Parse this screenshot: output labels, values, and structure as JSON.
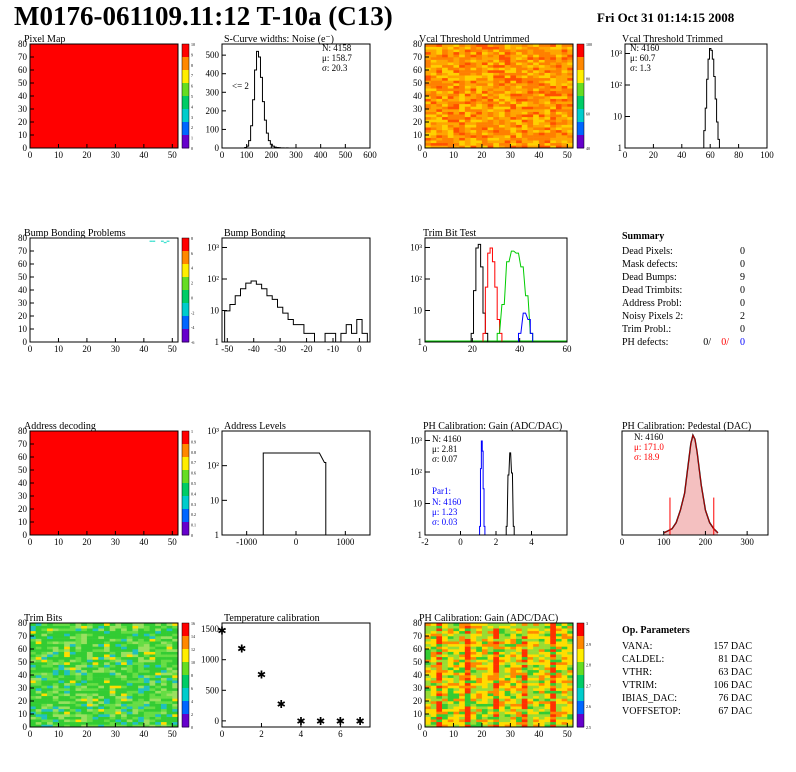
{
  "header": {
    "title": "M0176-061109.11:12 T-10a (C13)",
    "date": "Fri Oct 31 01:14:15 2008"
  },
  "colors": {
    "red": "#ff0000",
    "blue": "#0000ff",
    "green": "#00cc00",
    "black": "#000000"
  },
  "chart_data": [
    {
      "id": "pixel-map",
      "type": "heatmap",
      "title": "Pixel Map",
      "xlim": [
        0,
        52
      ],
      "ylim": [
        0,
        80
      ],
      "xticks": [
        "0",
        "10",
        "20",
        "30",
        "40",
        "50"
      ],
      "yticks": [
        "0",
        "10",
        "20",
        "30",
        "40",
        "50",
        "60",
        "70",
        "80"
      ],
      "fill": "uniform red (all pixels at maximum)",
      "palette_labels": [
        "0",
        "1",
        "2",
        "3",
        "4",
        "5",
        "6",
        "7",
        "8",
        "9",
        "10"
      ]
    },
    {
      "id": "scurve-widths",
      "type": "bar",
      "title": "S-Curve widths: Noise (e⁻)",
      "xlim": [
        0,
        600
      ],
      "ylim": [
        0,
        560
      ],
      "xticks": [
        "0",
        "100",
        "200",
        "300",
        "400",
        "500",
        "600"
      ],
      "yticks": [
        "0",
        "100",
        "200",
        "300",
        "400",
        "500"
      ],
      "annotation": "<= 2",
      "stats": {
        "N": "N: 4158",
        "mean": "μ: 158.7",
        "sigma": "σ: 20.3"
      },
      "x": [
        96,
        104,
        112,
        120,
        128,
        136,
        144,
        152,
        160,
        168,
        176,
        184,
        192,
        200,
        208,
        216,
        224,
        232,
        240,
        248,
        256,
        264,
        272
      ],
      "values": [
        3,
        10,
        40,
        120,
        260,
        420,
        520,
        490,
        380,
        250,
        150,
        80,
        40,
        20,
        10,
        5,
        3,
        2,
        1,
        1,
        0,
        1,
        0
      ]
    },
    {
      "id": "vcal-untrimmed",
      "type": "heatmap",
      "title": "Vcal Threshold Untrimmed",
      "xlim": [
        0,
        52
      ],
      "ylim": [
        0,
        80
      ],
      "xticks": [
        "0",
        "10",
        "20",
        "30",
        "40",
        "50"
      ],
      "yticks": [
        "0",
        "10",
        "20",
        "30",
        "40",
        "50",
        "60",
        "70",
        "80"
      ],
      "fill": "noisy orange / yellow",
      "palette_labels": [
        "40",
        "60",
        "80",
        "100"
      ]
    },
    {
      "id": "vcal-trimmed",
      "type": "bar",
      "title": "Vcal Threshold Trimmed",
      "scale": "log",
      "xlim": [
        0,
        100
      ],
      "ylim": [
        1,
        2000
      ],
      "xticks": [
        "0",
        "20",
        "40",
        "60",
        "80",
        "100"
      ],
      "yticks": [
        "1",
        "10",
        "10²",
        "10³"
      ],
      "stats": {
        "N": "N: 4160",
        "mean": "μ: 60.7",
        "sigma": "σ:  1.3"
      },
      "x": [
        56,
        57,
        58,
        59,
        60,
        61,
        62,
        63,
        64,
        65,
        66
      ],
      "values": [
        2,
        12,
        120,
        600,
        1400,
        1200,
        600,
        150,
        25,
        4,
        1
      ]
    },
    {
      "id": "bump-bonding-problems",
      "type": "heatmap",
      "title": "Bump Bonding Problems",
      "xlim": [
        0,
        52
      ],
      "ylim": [
        0,
        80
      ],
      "xticks": [
        "0",
        "10",
        "20",
        "30",
        "40",
        "50"
      ],
      "yticks": [
        "0",
        "10",
        "20",
        "30",
        "40",
        "50",
        "60",
        "70",
        "80"
      ],
      "fill": "mostly empty, few entries near top right",
      "palette_labels": [
        "-6",
        "-4",
        "-2",
        "0",
        "2",
        "4",
        "6",
        "8"
      ]
    },
    {
      "id": "bump-bonding",
      "type": "bar",
      "title": "Bump Bonding",
      "scale": "log",
      "xlim": [
        -52,
        4
      ],
      "ylim": [
        1,
        2000
      ],
      "xticks": [
        "-50",
        "-40",
        "-30",
        "-20",
        "-10",
        "0"
      ],
      "yticks": [
        "1",
        "10",
        "10²",
        "10³"
      ],
      "x": [
        -50,
        -48,
        -46,
        -44,
        -42,
        -40,
        -38,
        -36,
        -34,
        -32,
        -30,
        -28,
        -26,
        -24,
        -22,
        -20,
        -18,
        -16,
        -14,
        -12,
        -10,
        -8,
        -6,
        -4,
        -2,
        0,
        2
      ],
      "values": [
        6,
        10,
        20,
        35,
        55,
        65,
        50,
        35,
        20,
        15,
        8,
        5,
        3,
        2,
        2,
        1,
        1,
        0,
        0,
        1,
        1,
        0,
        1,
        2,
        1,
        3,
        1
      ]
    },
    {
      "id": "trim-bit-test",
      "type": "line",
      "title": "Trim Bit Test",
      "scale": "log",
      "xlim": [
        0,
        60
      ],
      "ylim": [
        1,
        2000
      ],
      "xticks": [
        "0",
        "20",
        "40",
        "60"
      ],
      "yticks": [
        "1",
        "10",
        "10²",
        "10³"
      ],
      "series": [
        {
          "color": "#000000",
          "x": [
            20,
            21,
            22,
            23,
            24,
            25,
            26
          ],
          "values": [
            1,
            30,
            900,
            1200,
            200,
            5,
            1
          ]
        },
        {
          "color": "#ff0000",
          "x": [
            25,
            26,
            27,
            28,
            29,
            30,
            31,
            32
          ],
          "values": [
            1,
            40,
            600,
            900,
            300,
            40,
            3,
            1
          ]
        },
        {
          "color": "#00cc00",
          "x": [
            31,
            33,
            35,
            37,
            39,
            41,
            43,
            45
          ],
          "values": [
            1,
            10,
            300,
            700,
            600,
            200,
            20,
            1
          ]
        },
        {
          "color": "#0000ff",
          "x": [
            40,
            42,
            44,
            45
          ],
          "values": [
            1,
            5,
            3,
            1
          ]
        }
      ]
    },
    {
      "id": "address-decoding",
      "type": "heatmap",
      "title": "Address decoding",
      "xlim": [
        0,
        52
      ],
      "ylim": [
        0,
        80
      ],
      "xticks": [
        "0",
        "10",
        "20",
        "30",
        "40",
        "50"
      ],
      "yticks": [
        "0",
        "10",
        "20",
        "30",
        "40",
        "50",
        "60",
        "70",
        "80"
      ],
      "fill": "uniform red",
      "palette_labels": [
        "0",
        "0.1",
        "0.2",
        "0.3",
        "0.4",
        "0.5",
        "0.6",
        "0.7",
        "0.8",
        "0.9",
        "1"
      ]
    },
    {
      "id": "address-levels",
      "type": "bar",
      "title": "Address Levels",
      "scale": "log",
      "xlim": [
        -1500,
        1500
      ],
      "ylim": [
        1,
        1000
      ],
      "xticks": [
        "-1000",
        "0",
        "1000"
      ],
      "yticks": [
        "1",
        "10",
        "10²",
        "10³"
      ],
      "x": [
        -650,
        -80,
        60,
        190,
        330,
        460,
        590
      ],
      "values": [
        200,
        200,
        200,
        200,
        200,
        200,
        100
      ]
    },
    {
      "id": "ph-gain",
      "type": "line",
      "title": "PH Calibration: Gain (ADC/DAC)",
      "scale": "log",
      "xlim": [
        -2,
        6
      ],
      "ylim": [
        1,
        2000
      ],
      "xticks": [
        "-2",
        "0",
        "2",
        "4"
      ],
      "yticks": [
        "1",
        "10",
        "10²",
        "10³"
      ],
      "stats": {
        "N": "N: 4160",
        "mean": "μ: 2.81",
        "sigma": "σ: 0.07"
      },
      "par1_stats": {
        "label": "Par1:",
        "N": "N: 4160",
        "mean": "μ: 1.23",
        "sigma": "σ: 0.03"
      },
      "series": [
        {
          "color": "#000000",
          "x": [
            2.6,
            2.7,
            2.8,
            2.9,
            3.0
          ],
          "values": [
            1,
            60,
            350,
            70,
            1
          ]
        },
        {
          "color": "#0000ff",
          "x": [
            1.1,
            1.15,
            1.2,
            1.25,
            1.3,
            1.35
          ],
          "values": [
            1,
            100,
            900,
            400,
            20,
            1
          ]
        }
      ]
    },
    {
      "id": "ph-pedestal",
      "type": "bar",
      "title": "PH Calibration: Pedestal (DAC)",
      "xlim": [
        0,
        350
      ],
      "ylim": [
        0,
        50
      ],
      "xticks": [
        "0",
        "100",
        "200",
        "300"
      ],
      "stats": {
        "N": "N: 4160",
        "mean": "μ: 171.0",
        "sigma": "σ: 18.9"
      },
      "fit_range": [
        115,
        220
      ],
      "x": [
        100,
        110,
        120,
        130,
        140,
        150,
        155,
        160,
        165,
        170,
        175,
        180,
        185,
        190,
        200,
        210,
        220,
        230
      ],
      "values": [
        1,
        2,
        3,
        6,
        12,
        20,
        28,
        36,
        44,
        48,
        46,
        40,
        32,
        24,
        12,
        6,
        3,
        1
      ]
    },
    {
      "id": "summary",
      "type": "table",
      "title": "Summary",
      "rows": [
        {
          "label": "Dead Pixels:",
          "value": "0"
        },
        {
          "label": "Mask defects:",
          "value": "0"
        },
        {
          "label": "Dead Bumps:",
          "value": "9"
        },
        {
          "label": "Dead Trimbits:",
          "value": "0"
        },
        {
          "label": "Address Probl:",
          "value": "0"
        },
        {
          "label": "Noisy Pixels 2:",
          "value": "2"
        },
        {
          "label": "Trim Probl.:",
          "value": "0"
        }
      ],
      "ph_defects": {
        "label": "PH defects:",
        "black": "0/",
        "red": "0/",
        "blue": "0"
      }
    },
    {
      "id": "trim-bits",
      "type": "heatmap",
      "title": "Trim Bits",
      "xlim": [
        0,
        52
      ],
      "ylim": [
        0,
        80
      ],
      "xticks": [
        "0",
        "10",
        "20",
        "30",
        "40",
        "50"
      ],
      "yticks": [
        "0",
        "10",
        "20",
        "30",
        "40",
        "50",
        "60",
        "70",
        "80"
      ],
      "fill": "noisy green",
      "palette_labels": [
        "0",
        "2",
        "4",
        "6",
        "8",
        "10",
        "12",
        "14",
        "16"
      ]
    },
    {
      "id": "temperature-calibration",
      "type": "scatter",
      "title": "Temperature calibration",
      "xlim": [
        0,
        7.5
      ],
      "ylim": [
        -100,
        1600
      ],
      "xticks": [
        "0",
        "2",
        "4",
        "6"
      ],
      "yticks": [
        "0",
        "500",
        "1000",
        "1500"
      ],
      "x": [
        0,
        1,
        2,
        3,
        4,
        5,
        6,
        7
      ],
      "values": [
        1480,
        1180,
        760,
        280,
        0,
        0,
        0,
        0
      ]
    },
    {
      "id": "ph-gain-map",
      "type": "heatmap",
      "title": "PH Calibration: Gain (ADC/DAC)",
      "xlim": [
        0,
        52
      ],
      "ylim": [
        0,
        80
      ],
      "xticks": [
        "0",
        "10",
        "20",
        "30",
        "40",
        "50"
      ],
      "yticks": [
        "0",
        "10",
        "20",
        "30",
        "40",
        "50",
        "60",
        "70",
        "80"
      ],
      "fill": "columnar green / yellow / red",
      "palette_labels": [
        "2.5",
        "2.6",
        "2.7",
        "2.8",
        "2.9",
        "3"
      ]
    },
    {
      "id": "op-parameters",
      "type": "table",
      "title": "Op. Parameters",
      "rows": [
        {
          "label": "VANA:",
          "value": "157 DAC"
        },
        {
          "label": "CALDEL:",
          "value": "81 DAC"
        },
        {
          "label": "VTHR:",
          "value": "63 DAC"
        },
        {
          "label": "VTRIM:",
          "value": "106 DAC"
        },
        {
          "label": "IBIAS_DAC:",
          "value": "76 DAC"
        },
        {
          "label": "VOFFSETOP:",
          "value": "67 DAC"
        }
      ]
    }
  ]
}
